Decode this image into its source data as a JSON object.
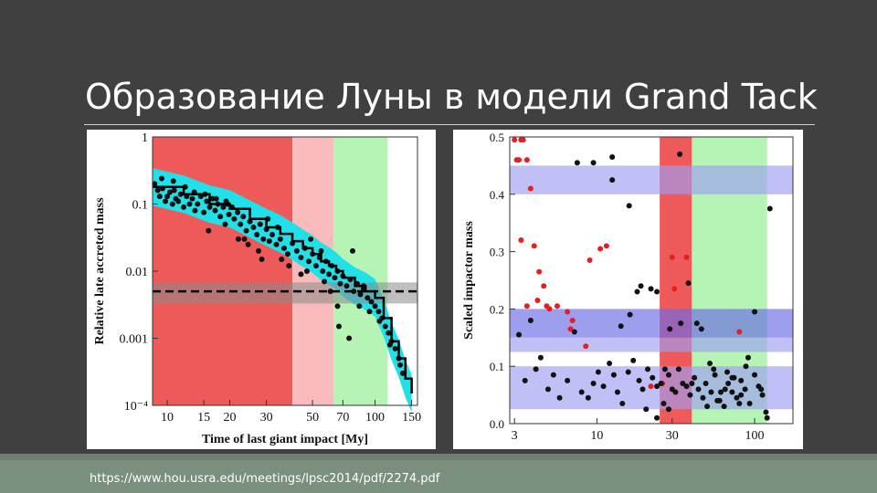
{
  "slide": {
    "title": "Образование Луны в модели Grand Tack",
    "source_url": "https://www.hou.usra.edu/meetings/lpsc2014/pdf/2274.pdf"
  },
  "colors": {
    "background": "#404040",
    "zone_red": "#ee5a5a",
    "zone_pink": "#f8baba",
    "zone_green": "#b6f4b6",
    "band_blue": "#9e9ef2",
    "band_blue_dark": "#6a6ae6",
    "cyan": "#22e0e8",
    "points_black": "#111111",
    "points_red": "#e81d1d"
  },
  "chart_data": [
    {
      "type": "scatter",
      "xlabel": "Time of last giant impact [My]",
      "ylabel": "Relative late accreted mass",
      "x_scale": "log",
      "y_scale": "log",
      "xlim": [
        8.5,
        160
      ],
      "ylim": [
        0.0001,
        1
      ],
      "x_ticks": [
        10,
        15,
        20,
        30,
        50,
        70,
        100,
        150
      ],
      "x_tick_labels": [
        "10",
        "15",
        "20",
        "30",
        "50",
        "70",
        "100",
        "150"
      ],
      "y_ticks": [
        1,
        0.1,
        0.01,
        0.001,
        0.0001
      ],
      "y_tick_labels": [
        "1",
        "0.1",
        "0.01",
        "0.001",
        "10⁻⁴"
      ],
      "zones": [
        {
          "x": [
            8.5,
            40
          ],
          "color": "#ee5a5a"
        },
        {
          "x": [
            40,
            63
          ],
          "color": "#f8baba"
        },
        {
          "x": [
            63,
            115
          ],
          "color": "#b6f4b6"
        }
      ],
      "horizontal_band": {
        "y_center": 0.005,
        "y_range": [
          0.0033,
          0.0068
        ]
      },
      "dashed_line_y": 0.005,
      "fit_line": {
        "x": [
          8.5,
          12,
          16,
          20,
          25,
          30,
          35,
          40,
          45,
          50,
          55,
          60,
          65,
          70,
          80,
          90,
          100,
          110,
          120,
          130,
          140,
          150
        ],
        "y": [
          0.18,
          0.14,
          0.1,
          0.085,
          0.06,
          0.045,
          0.036,
          0.028,
          0.022,
          0.018,
          0.014,
          0.012,
          0.01,
          0.008,
          0.006,
          0.005,
          0.004,
          0.002,
          0.0009,
          0.0005,
          0.00025,
          0.00015
        ]
      },
      "points": {
        "x": [
          8.7,
          9,
          9.2,
          9.5,
          9.8,
          10,
          10.3,
          10.6,
          10.8,
          11,
          11.3,
          11.6,
          12,
          12.4,
          12.8,
          13.2,
          13.6,
          14,
          14.5,
          15,
          15.5,
          16,
          16.5,
          17,
          17.5,
          18,
          18.6,
          19.2,
          19.8,
          20.5,
          21,
          21.8,
          22.5,
          23.2,
          24,
          25,
          26,
          27,
          28,
          29,
          30,
          31,
          32,
          33.5,
          35,
          36.5,
          38,
          40,
          42,
          44,
          46,
          48,
          50,
          52,
          54,
          56,
          58,
          60,
          62,
          64,
          66,
          68,
          70,
          73,
          76,
          79,
          82,
          85,
          88,
          92,
          96,
          100,
          104,
          108,
          112,
          116,
          120,
          125,
          130,
          136,
          9.4,
          10.7,
          12.2,
          13.5,
          15.2,
          17.2,
          19,
          22,
          24.5,
          27.5,
          30.5,
          34,
          38.5,
          44,
          49,
          55,
          61,
          67,
          75,
          84,
          94,
          105,
          118,
          132,
          15.8,
          19.5,
          23.5,
          28.5,
          35.5,
          47,
          57,
          66,
          78,
          88
        ],
        "y": [
          0.2,
          0.16,
          0.13,
          0.17,
          0.11,
          0.13,
          0.15,
          0.1,
          0.16,
          0.12,
          0.11,
          0.14,
          0.09,
          0.13,
          0.1,
          0.12,
          0.08,
          0.1,
          0.13,
          0.075,
          0.11,
          0.09,
          0.12,
          0.08,
          0.1,
          0.065,
          0.09,
          0.11,
          0.07,
          0.09,
          0.06,
          0.075,
          0.05,
          0.065,
          0.04,
          0.055,
          0.045,
          0.035,
          0.05,
          0.03,
          0.042,
          0.028,
          0.035,
          0.025,
          0.03,
          0.022,
          0.018,
          0.026,
          0.02,
          0.016,
          0.022,
          0.014,
          0.018,
          0.012,
          0.016,
          0.01,
          0.014,
          0.009,
          0.012,
          0.008,
          0.01,
          0.0065,
          0.0085,
          0.006,
          0.0075,
          0.005,
          0.0065,
          0.0045,
          0.0055,
          0.004,
          0.0035,
          0.003,
          0.0025,
          0.002,
          0.0015,
          0.0012,
          0.0009,
          0.0007,
          0.0005,
          0.0003,
          0.24,
          0.22,
          0.18,
          0.15,
          0.14,
          0.12,
          0.05,
          0.03,
          0.025,
          0.02,
          0.06,
          0.045,
          0.012,
          0.009,
          0.03,
          0.02,
          0.005,
          0.0015,
          0.001,
          0.003,
          0.0025,
          0.0018,
          0.0008,
          0.0004,
          0.04,
          0.1,
          0.03,
          0.015,
          0.015,
          0.01,
          0.007,
          0.003,
          0.02,
          0.006
        ]
      }
    },
    {
      "type": "scatter",
      "ylabel": "Scaled impactor mass",
      "x_scale": "log",
      "xlim": [
        2.8,
        175
      ],
      "ylim": [
        0,
        0.5
      ],
      "x_ticks": [
        3,
        10,
        30,
        100
      ],
      "x_tick_labels": [
        "3",
        "10",
        "30",
        "100"
      ],
      "y_ticks": [
        0,
        0.1,
        0.2,
        0.3,
        0.4,
        0.5
      ],
      "y_tick_labels": [
        "0.0",
        "0.1",
        "0.2",
        "0.3",
        "0.4",
        "0.5"
      ],
      "zones": [
        {
          "x": [
            25,
            40
          ],
          "color": "#ee5a5a"
        },
        {
          "x": [
            40,
            120
          ],
          "color": "#b6f4b6"
        }
      ],
      "bands": [
        {
          "y": [
            0.4,
            0.45
          ],
          "color": "#9e9ef2"
        },
        {
          "y": [
            0.15,
            0.2
          ],
          "color": "#6a6ae6"
        },
        {
          "y": [
            0.125,
            0.15
          ],
          "color": "#9e9ef2"
        },
        {
          "y": [
            0.025,
            0.1
          ],
          "color": "#9e9ef2"
        }
      ],
      "series": [
        {
          "color": "#e81d1d",
          "x": [
            3.0,
            3.4,
            3.1,
            3.2,
            3.3,
            3.6,
            3.3,
            3.8,
            4.0,
            3.6,
            4.3,
            4.6,
            4.8,
            4.2,
            5.0,
            5.6,
            6.5,
            6.8,
            7.0,
            8.5,
            9.0,
            10.5,
            11.5,
            22,
            26,
            31,
            30,
            37,
            80
          ],
          "y": [
            0.495,
            0.495,
            0.46,
            0.46,
            0.495,
            0.46,
            0.32,
            0.41,
            0.31,
            0.205,
            0.265,
            0.24,
            0.205,
            0.215,
            0.2,
            0.205,
            0.195,
            0.165,
            0.18,
            0.135,
            0.285,
            0.305,
            0.31,
            0.065,
            0.07,
            0.235,
            0.29,
            0.29,
            0.16
          ]
        },
        {
          "color": "#111111",
          "x": [
            3.2,
            3.5,
            3.8,
            4.1,
            4.4,
            4.9,
            5.3,
            5.8,
            6.5,
            7.2,
            8.0,
            8.8,
            9.5,
            10.2,
            11.0,
            12.0,
            12.8,
            13.5,
            14.5,
            15.8,
            17.0,
            18.5,
            19.5,
            21,
            22.5,
            24,
            25.5,
            27,
            28.5,
            30,
            31.5,
            33,
            35,
            37,
            39,
            41.5,
            44,
            47,
            50,
            53,
            56,
            60,
            64,
            68,
            72,
            77,
            82,
            87,
            93,
            100,
            106,
            112,
            118,
            125,
            7.5,
            9.5,
            12.5,
            14.2,
            16.2,
            18,
            20.5,
            24,
            29,
            33.5,
            38,
            43,
            49,
            55,
            61,
            67,
            74,
            82,
            91,
            100,
            110,
            120,
            12.5,
            16,
            19,
            22,
            24,
            26.5,
            28.5,
            34,
            40,
            46,
            52,
            58,
            65,
            72,
            80,
            88
          ],
          "y": [
            0.155,
            0.075,
            0.18,
            0.095,
            0.115,
            0.06,
            0.085,
            0.045,
            0.075,
            0.16,
            0.055,
            0.045,
            0.07,
            0.09,
            0.065,
            0.105,
            0.085,
            0.055,
            0.035,
            0.09,
            0.11,
            0.075,
            0.06,
            0.095,
            0.08,
            0.065,
            0.07,
            0.095,
            0.085,
            0.06,
            0.055,
            0.095,
            0.07,
            0.065,
            0.05,
            0.08,
            0.06,
            0.045,
            0.03,
            0.055,
            0.085,
            0.04,
            0.03,
            0.07,
            0.055,
            0.045,
            0.075,
            0.06,
            0.035,
            0.085,
            0.065,
            0.05,
            0.02,
            0.375,
            0.455,
            0.455,
            0.465,
            0.17,
            0.19,
            0.23,
            0.025,
            0.23,
            0.165,
            0.47,
            0.245,
            0.175,
            0.07,
            0.095,
            0.055,
            0.09,
            0.08,
            0.05,
            0.115,
            0.195,
            0.06,
            0.01,
            0.425,
            0.38,
            0.24,
            0.235,
            0.01,
            0.035,
            0.025,
            0.175,
            0.07,
            0.165,
            0.105,
            0.04,
            0.06,
            0.08,
            0.035,
            0.1
          ]
        }
      ]
    }
  ]
}
